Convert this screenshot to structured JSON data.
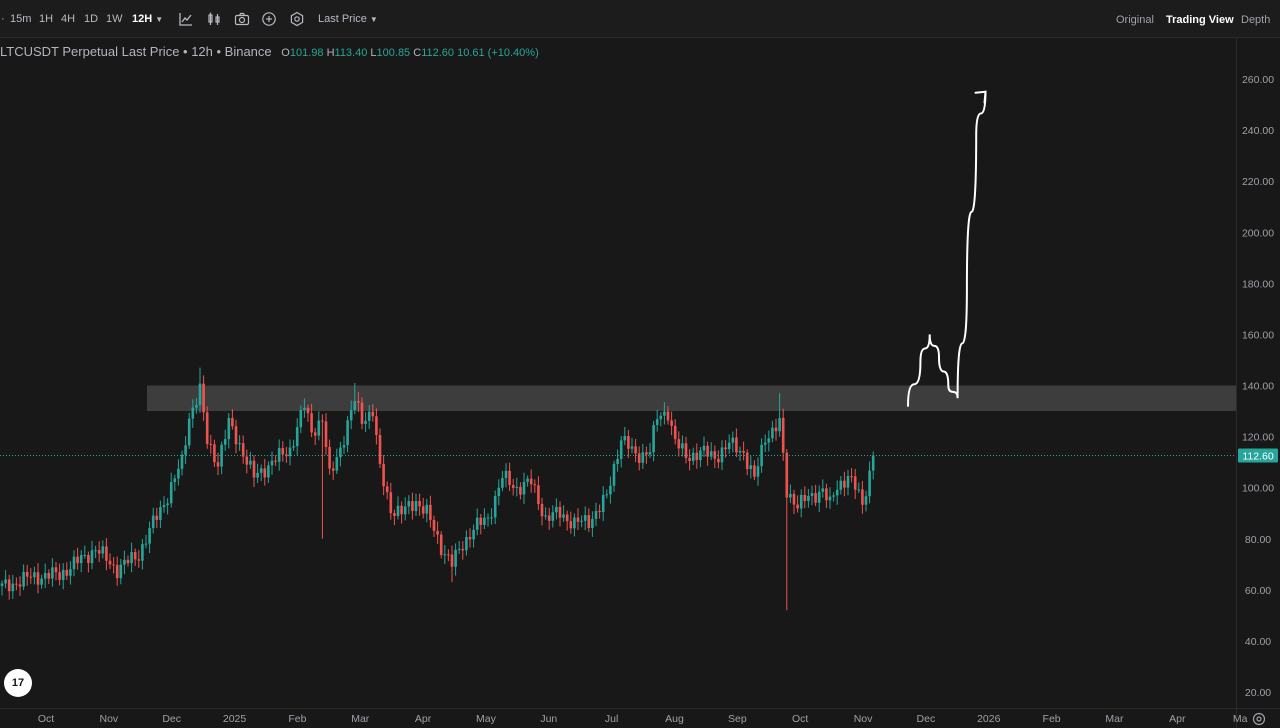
{
  "toolbar": {
    "timeframes": [
      {
        "label": "15m",
        "active": false
      },
      {
        "label": "1H",
        "active": false
      },
      {
        "label": "4H",
        "active": false
      },
      {
        "label": "1D",
        "active": false
      },
      {
        "label": "1W",
        "active": false
      },
      {
        "label": "12H",
        "active": true
      }
    ],
    "price_type": "Last Price",
    "views": [
      {
        "label": "Original",
        "active": false
      },
      {
        "label": "Trading View",
        "active": true
      },
      {
        "label": "Depth",
        "active": false
      }
    ],
    "icons": [
      "indicators-icon",
      "candle-type-icon",
      "camera-icon",
      "plus-circle-icon",
      "settings-icon"
    ]
  },
  "legend": {
    "title": "LTCUSDT Perpetual Last Price • 12h • Binance",
    "open_key": "O",
    "open": "101.98",
    "high_key": "H",
    "high": "113.40",
    "low_key": "L",
    "low": "100.85",
    "close_key": "C",
    "close": "112.60",
    "change": "10.61 (+10.40%)"
  },
  "logo_text": "17",
  "colors": {
    "up": "#26a69a",
    "down": "#ef5350",
    "zone": "#4a4a4a",
    "current_price": "#26a69a",
    "drawing": "#ffffff"
  },
  "chart_data": {
    "type": "candlestick",
    "x_ticks": [
      "Oct",
      "Nov",
      "Dec",
      "2025",
      "Feb",
      "Mar",
      "Apr",
      "May",
      "Jun",
      "Jul",
      "Aug",
      "Sep",
      "Oct",
      "Nov",
      "Dec",
      "2026",
      "Feb",
      "Mar",
      "Apr",
      "Ma"
    ],
    "y_ticks": [
      "260.00",
      "240.00",
      "220.00",
      "200.00",
      "180.00",
      "160.00",
      "140.00",
      "120.00",
      "100.00",
      "80.00",
      "60.00",
      "40.00",
      "20.00"
    ],
    "y_range": [
      20,
      260
    ],
    "current_price": "112.60",
    "resistance_zone": [
      130,
      140
    ],
    "price_path": [
      [
        0,
        61
      ],
      [
        8,
        65
      ],
      [
        16,
        66
      ],
      [
        22,
        72
      ],
      [
        26,
        76
      ],
      [
        32,
        68
      ],
      [
        38,
        74
      ],
      [
        42,
        86
      ],
      [
        46,
        97
      ],
      [
        50,
        110
      ],
      [
        52,
        128
      ],
      [
        55,
        138
      ],
      [
        57,
        118
      ],
      [
        60,
        110
      ],
      [
        63,
        125
      ],
      [
        66,
        117
      ],
      [
        70,
        104
      ],
      [
        75,
        110
      ],
      [
        80,
        115
      ],
      [
        84,
        132
      ],
      [
        86,
        122
      ],
      [
        89,
        127
      ],
      [
        91,
        104
      ],
      [
        95,
        120
      ],
      [
        98,
        134
      ],
      [
        100,
        127
      ],
      [
        103,
        130
      ],
      [
        105,
        107
      ],
      [
        108,
        92
      ],
      [
        111,
        90
      ],
      [
        115,
        95
      ],
      [
        118,
        90
      ],
      [
        122,
        77
      ],
      [
        125,
        70
      ],
      [
        128,
        78
      ],
      [
        131,
        84
      ],
      [
        135,
        88
      ],
      [
        139,
        104
      ],
      [
        143,
        100
      ],
      [
        147,
        102
      ],
      [
        151,
        88
      ],
      [
        155,
        90
      ],
      [
        159,
        86
      ],
      [
        163,
        87
      ],
      [
        168,
        96
      ],
      [
        172,
        120
      ],
      [
        176,
        112
      ],
      [
        180,
        115
      ],
      [
        182,
        127
      ],
      [
        185,
        130
      ],
      [
        187,
        118
      ],
      [
        190,
        112
      ],
      [
        194,
        114
      ],
      [
        198,
        112
      ],
      [
        202,
        117
      ],
      [
        206,
        114
      ],
      [
        209,
        103
      ],
      [
        212,
        120
      ],
      [
        216,
        125
      ],
      [
        218,
        98
      ],
      [
        221,
        94
      ],
      [
        225,
        96
      ],
      [
        228,
        100
      ],
      [
        230,
        93
      ],
      [
        232,
        100
      ],
      [
        235,
        105
      ],
      [
        237,
        100
      ],
      [
        239,
        93
      ],
      [
        241,
        106
      ],
      [
        242,
        112.6
      ]
    ],
    "wick_extremes": [
      {
        "i": 55,
        "high": 147
      },
      {
        "i": 98,
        "high": 141
      },
      {
        "i": 89,
        "low": 80
      },
      {
        "i": 125,
        "low": 63
      },
      {
        "i": 216,
        "high": 137
      },
      {
        "i": 218,
        "low": 52
      }
    ],
    "drawing_path": [
      [
        0,
        132
      ],
      [
        8,
        149
      ],
      [
        14,
        160
      ],
      [
        20,
        151
      ],
      [
        26,
        140
      ],
      [
        32,
        135
      ],
      [
        38,
        178
      ],
      [
        44,
        238
      ],
      [
        50,
        255
      ]
    ]
  }
}
